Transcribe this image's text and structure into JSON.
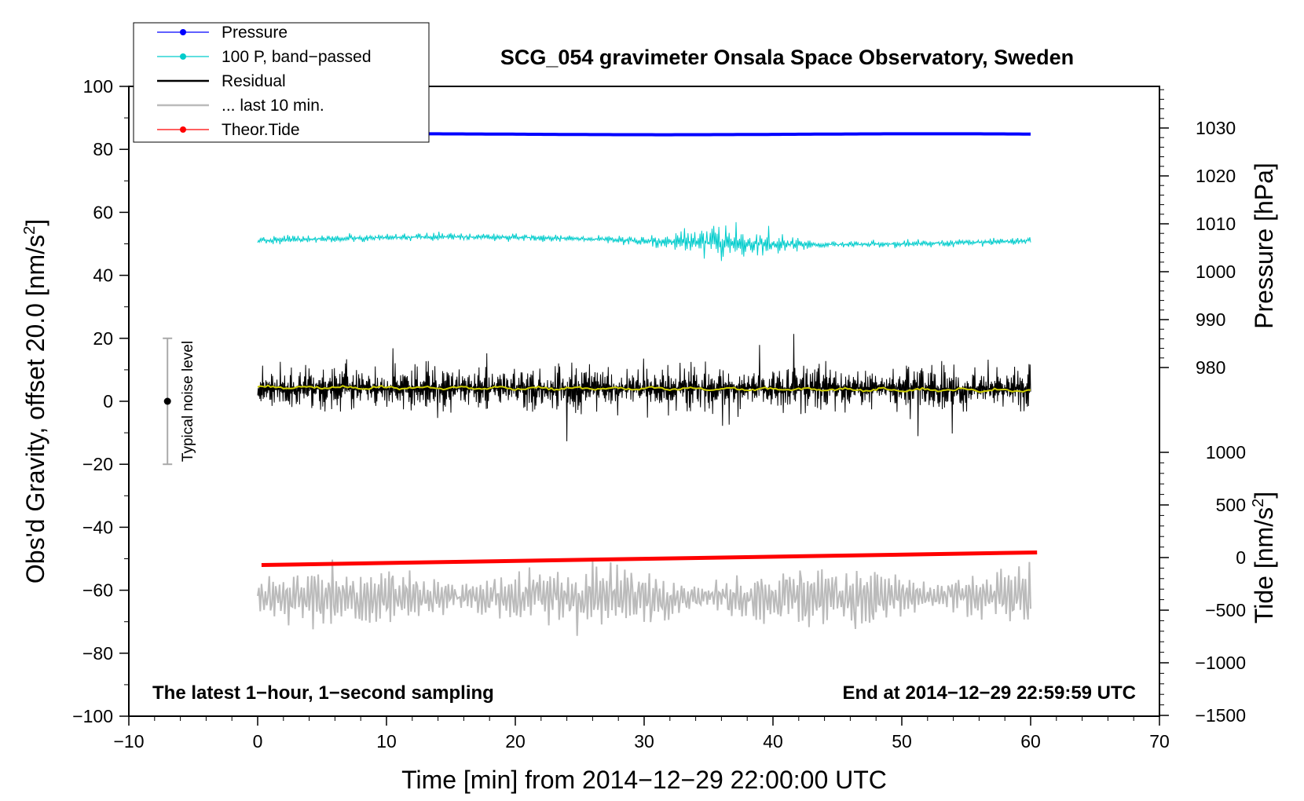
{
  "chart_data": {
    "type": "line",
    "title": "SCG_054 gravimeter Onsala Space Observatory, Sweden",
    "xlabel": "Time [min] from 2014−12−29 22:00:00 UTC",
    "ylabel": "Obs'd Gravity, offset 20.0 [nm/s",
    "ylabel_sup": "2",
    "ylabel_end": "]",
    "y2label": "Pressure [hPa]",
    "y3label": "Tide [nm/s",
    "y3label_sup": "2",
    "y3label_end": "]",
    "xlim": [
      -10,
      70
    ],
    "ylim": [
      -100,
      100
    ],
    "x_ticks": [
      -10,
      0,
      10,
      20,
      30,
      40,
      50,
      60,
      70
    ],
    "x_tick_labels": [
      "−10",
      "0",
      "10",
      "20",
      "30",
      "40",
      "50",
      "60",
      "70"
    ],
    "y_ticks": [
      -100,
      -80,
      -60,
      -40,
      -20,
      0,
      20,
      40,
      60,
      80,
      100
    ],
    "y_tick_labels": [
      "−100",
      "−80",
      "−60",
      "−40",
      "−20",
      "0",
      "20",
      "40",
      "60",
      "80",
      "100"
    ],
    "pressure_axis": {
      "ticks": [
        980,
        990,
        1000,
        1010,
        1020,
        1030
      ],
      "tick_labels": [
        "980",
        "990",
        "1000",
        "1010",
        "1020",
        "1030"
      ],
      "range": [
        970,
        1040
      ]
    },
    "tide_axis": {
      "ticks": [
        -1500,
        -1000,
        -500,
        0,
        500,
        1000
      ],
      "tick_labels": [
        "−1500",
        "−1000",
        "−500",
        "0",
        "500",
        "1000"
      ],
      "range": [
        -1500,
        1500
      ]
    },
    "legend": [
      {
        "label": "Pressure",
        "color": "#0000ff",
        "marker": true
      },
      {
        "label": "100 P, band−passed",
        "color": "#00cccc",
        "marker": true
      },
      {
        "label": "Residual",
        "color": "#000000",
        "marker": false
      },
      {
        "label": "... last 10 min.",
        "color": "#bbbbbb",
        "marker": false
      },
      {
        "label": "Theor.Tide",
        "color": "#ff0000",
        "marker": true
      }
    ],
    "series": [
      {
        "name": "Pressure",
        "color": "#0000ff",
        "x_range": [
          0,
          60
        ],
        "level": 84.8,
        "plotted_in": "gravity offset units"
      },
      {
        "name": "100 P, band−passed",
        "color": "#00cccc",
        "x_range": [
          0,
          60
        ],
        "center": 51,
        "amplitude": 2,
        "max_amplitude": 6
      },
      {
        "name": "Residual",
        "color": "#000000",
        "x_range": [
          0,
          60
        ],
        "center": 4,
        "typical_range": [
          -10,
          18
        ],
        "extremes": [
          -15,
          27
        ]
      },
      {
        "name": "Residual smoothed",
        "color": "#cccc00",
        "x_range": [
          0,
          60
        ],
        "start": 4.5,
        "end": 3.5
      },
      {
        "name": "... last 10 min.",
        "color": "#bbbbbb",
        "x_range": [
          0,
          60
        ],
        "center": -62,
        "range": [
          -78,
          -47
        ]
      },
      {
        "name": "Theor.Tide",
        "color": "#ff0000",
        "x": [
          0.3,
          60.5
        ],
        "y": [
          -52,
          -48
        ]
      }
    ],
    "noise_bar": {
      "label": "Typical noise level",
      "x": -7,
      "center": 0,
      "range": [
        -20,
        20
      ]
    },
    "annotations": {
      "left": "The latest 1−hour, 1−second sampling",
      "right": "End at 2014−12−29 22:59:59 UTC"
    }
  }
}
